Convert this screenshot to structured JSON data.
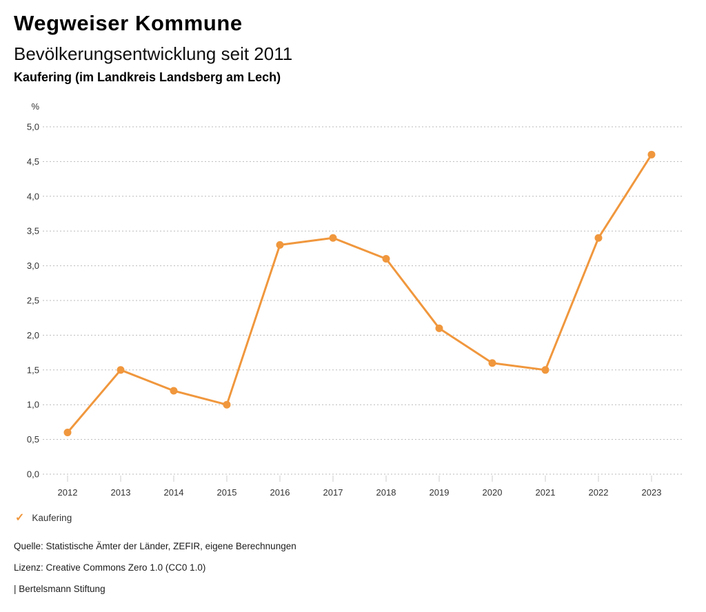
{
  "header": {
    "title": "Wegweiser Kommune",
    "subtitle": "Bevölkerungsentwicklung seit 2011",
    "region": "Kaufering (im Landkreis Landsberg am Lech)"
  },
  "chart_data": {
    "type": "line",
    "title": "Bevölkerungsentwicklung seit 2011",
    "subtitle": "Kaufering (im Landkreis Landsberg am Lech)",
    "ylabel": "%",
    "xlabel": "",
    "x": [
      "2012",
      "2013",
      "2014",
      "2015",
      "2016",
      "2017",
      "2018",
      "2019",
      "2020",
      "2021",
      "2022",
      "2023"
    ],
    "series": [
      {
        "name": "Kaufering",
        "color": "#F0973D",
        "values": [
          0.6,
          1.5,
          1.2,
          1.0,
          3.3,
          3.4,
          3.1,
          2.1,
          1.6,
          1.5,
          3.4,
          4.6
        ]
      }
    ],
    "ylim": [
      0,
      5
    ],
    "y_ticks": [
      0,
      0.5,
      1,
      1.5,
      2,
      2.5,
      3,
      3.5,
      4,
      4.5,
      5
    ],
    "y_tick_labels": [
      "0,0",
      "0,5",
      "1,0",
      "1,5",
      "2,0",
      "2,5",
      "3,0",
      "3,5",
      "4,0",
      "4,5",
      "5,0"
    ],
    "grid": "horizontal dotted",
    "legend_position": "bottom-left",
    "marker": "circle"
  },
  "legend": {
    "check_glyph": "✓",
    "items": [
      {
        "label": "Kaufering",
        "checked": true,
        "color": "#F0973D"
      }
    ]
  },
  "footer": {
    "source": "Quelle: Statistische Ämter der Länder, ZEFIR, eigene Berechnungen",
    "license": "Lizenz: Creative Commons Zero 1.0 (CC0 1.0)",
    "attribution": "| Bertelsmann Stiftung"
  },
  "colors": {
    "accent": "#F0973D",
    "grid": "#b9b9b9",
    "tick": "#cccccc",
    "axis_text": "#333333",
    "title_text": "#000000"
  }
}
